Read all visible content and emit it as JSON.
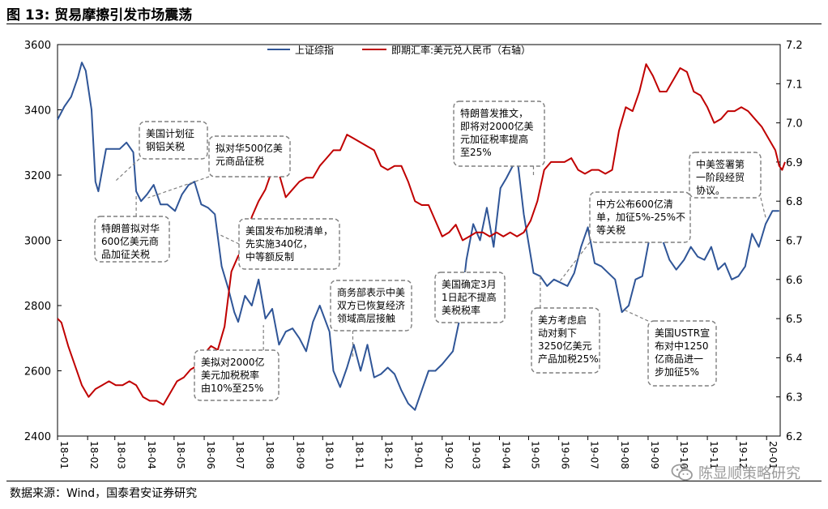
{
  "figure": {
    "title": "图 13: 贸易摩擦引发市场震荡",
    "source": "数据来源：Wind，国泰君安证券研究",
    "watermark": "陈显顺策略研究",
    "watermark_icon": "wechat-icon"
  },
  "colors": {
    "shanghai": "#2f5597",
    "cny": "#c00000",
    "callout_border": "#7f7f7f"
  },
  "chart_data": {
    "type": "line",
    "title": "",
    "legend_placement": "top-center",
    "grid": false,
    "x_ticks": [
      "18-01",
      "18-02",
      "18-03",
      "18-04",
      "18-05",
      "18-06",
      "18-07",
      "18-08",
      "18-09",
      "18-10",
      "18-11",
      "18-12",
      "19-01",
      "19-02",
      "19-03",
      "19-04",
      "19-05",
      "19-06",
      "19-07",
      "19-08",
      "19-09",
      "19-10",
      "19-11",
      "19-12",
      "20-01"
    ],
    "xlim": [
      "2018-01-01",
      "2020-01-15"
    ],
    "y_left": {
      "lim": [
        2400,
        3600
      ],
      "ticks": [
        "2400",
        "2600",
        "2800",
        "3000",
        "3200",
        "3400",
        "3600"
      ]
    },
    "y_right": {
      "lim": [
        6.2,
        7.2
      ],
      "ticks": [
        "6.2",
        "6.3",
        "6.4",
        "6.5",
        "6.6",
        "6.7",
        "6.8",
        "6.9",
        "7.0",
        "7.1",
        "7.2"
      ]
    },
    "series": [
      {
        "name": "上证综指",
        "axis": "left",
        "points": [
          [
            "2018-01-01",
            3370
          ],
          [
            "2018-01-08",
            3410
          ],
          [
            "2018-01-15",
            3440
          ],
          [
            "2018-01-22",
            3500
          ],
          [
            "2018-01-26",
            3545
          ],
          [
            "2018-01-30",
            3520
          ],
          [
            "2018-02-05",
            3400
          ],
          [
            "2018-02-09",
            3180
          ],
          [
            "2018-02-12",
            3150
          ],
          [
            "2018-02-20",
            3280
          ],
          [
            "2018-02-28",
            3280
          ],
          [
            "2018-03-06",
            3280
          ],
          [
            "2018-03-13",
            3300
          ],
          [
            "2018-03-20",
            3270
          ],
          [
            "2018-03-23",
            3150
          ],
          [
            "2018-03-28",
            3120
          ],
          [
            "2018-04-03",
            3140
          ],
          [
            "2018-04-10",
            3170
          ],
          [
            "2018-04-17",
            3110
          ],
          [
            "2018-04-24",
            3110
          ],
          [
            "2018-05-02",
            3090
          ],
          [
            "2018-05-09",
            3140
          ],
          [
            "2018-05-16",
            3170
          ],
          [
            "2018-05-22",
            3180
          ],
          [
            "2018-05-29",
            3110
          ],
          [
            "2018-06-05",
            3100
          ],
          [
            "2018-06-12",
            3080
          ],
          [
            "2018-06-19",
            2920
          ],
          [
            "2018-06-26",
            2850
          ],
          [
            "2018-07-02",
            2780
          ],
          [
            "2018-07-06",
            2750
          ],
          [
            "2018-07-13",
            2830
          ],
          [
            "2018-07-20",
            2800
          ],
          [
            "2018-07-27",
            2880
          ],
          [
            "2018-08-03",
            2760
          ],
          [
            "2018-08-10",
            2790
          ],
          [
            "2018-08-17",
            2680
          ],
          [
            "2018-08-24",
            2720
          ],
          [
            "2018-08-31",
            2730
          ],
          [
            "2018-09-07",
            2700
          ],
          [
            "2018-09-14",
            2660
          ],
          [
            "2018-09-21",
            2750
          ],
          [
            "2018-09-28",
            2800
          ],
          [
            "2018-10-08",
            2720
          ],
          [
            "2018-10-12",
            2600
          ],
          [
            "2018-10-19",
            2550
          ],
          [
            "2018-10-26",
            2610
          ],
          [
            "2018-11-02",
            2680
          ],
          [
            "2018-11-09",
            2600
          ],
          [
            "2018-11-16",
            2680
          ],
          [
            "2018-11-23",
            2580
          ],
          [
            "2018-11-30",
            2590
          ],
          [
            "2018-12-07",
            2610
          ],
          [
            "2018-12-14",
            2590
          ],
          [
            "2018-12-21",
            2540
          ],
          [
            "2018-12-28",
            2500
          ],
          [
            "2019-01-04",
            2480
          ],
          [
            "2019-01-11",
            2540
          ],
          [
            "2019-01-18",
            2600
          ],
          [
            "2019-01-25",
            2600
          ],
          [
            "2019-02-01",
            2620
          ],
          [
            "2019-02-12",
            2660
          ],
          [
            "2019-02-19",
            2760
          ],
          [
            "2019-02-26",
            2940
          ],
          [
            "2019-03-05",
            3050
          ],
          [
            "2019-03-12",
            3000
          ],
          [
            "2019-03-19",
            3100
          ],
          [
            "2019-03-26",
            2980
          ],
          [
            "2019-04-02",
            3160
          ],
          [
            "2019-04-08",
            3190
          ],
          [
            "2019-04-15",
            3230
          ],
          [
            "2019-04-19",
            3260
          ],
          [
            "2019-04-26",
            3080
          ],
          [
            "2019-05-06",
            2900
          ],
          [
            "2019-05-13",
            2890
          ],
          [
            "2019-05-20",
            2860
          ],
          [
            "2019-05-27",
            2880
          ],
          [
            "2019-06-03",
            2870
          ],
          [
            "2019-06-10",
            2860
          ],
          [
            "2019-06-17",
            2900
          ],
          [
            "2019-06-24",
            2980
          ],
          [
            "2019-07-01",
            3040
          ],
          [
            "2019-07-08",
            2930
          ],
          [
            "2019-07-15",
            2920
          ],
          [
            "2019-07-22",
            2900
          ],
          [
            "2019-07-29",
            2880
          ],
          [
            "2019-08-05",
            2780
          ],
          [
            "2019-08-12",
            2800
          ],
          [
            "2019-08-19",
            2880
          ],
          [
            "2019-08-26",
            2890
          ],
          [
            "2019-09-02",
            3000
          ],
          [
            "2019-09-09",
            3030
          ],
          [
            "2019-09-16",
            3000
          ],
          [
            "2019-09-23",
            2940
          ],
          [
            "2019-09-30",
            2910
          ],
          [
            "2019-10-08",
            2940
          ],
          [
            "2019-10-15",
            2980
          ],
          [
            "2019-10-22",
            2950
          ],
          [
            "2019-10-29",
            2940
          ],
          [
            "2019-11-05",
            2980
          ],
          [
            "2019-11-12",
            2910
          ],
          [
            "2019-11-19",
            2930
          ],
          [
            "2019-11-26",
            2880
          ],
          [
            "2019-12-03",
            2890
          ],
          [
            "2019-12-10",
            2920
          ],
          [
            "2019-12-17",
            3020
          ],
          [
            "2019-12-24",
            2980
          ],
          [
            "2019-12-31",
            3050
          ],
          [
            "2020-01-07",
            3090
          ],
          [
            "2020-01-14",
            3090
          ]
        ]
      },
      {
        "name": "即期汇率:美元兑人民币（右轴）",
        "axis": "right",
        "points": [
          [
            "2018-01-01",
            6.5
          ],
          [
            "2018-01-05",
            6.49
          ],
          [
            "2018-01-12",
            6.43
          ],
          [
            "2018-01-19",
            6.38
          ],
          [
            "2018-01-26",
            6.33
          ],
          [
            "2018-02-02",
            6.3
          ],
          [
            "2018-02-09",
            6.32
          ],
          [
            "2018-02-16",
            6.33
          ],
          [
            "2018-02-23",
            6.34
          ],
          [
            "2018-03-02",
            6.33
          ],
          [
            "2018-03-09",
            6.33
          ],
          [
            "2018-03-16",
            6.34
          ],
          [
            "2018-03-23",
            6.33
          ],
          [
            "2018-03-30",
            6.3
          ],
          [
            "2018-04-06",
            6.29
          ],
          [
            "2018-04-13",
            6.29
          ],
          [
            "2018-04-20",
            6.28
          ],
          [
            "2018-04-27",
            6.31
          ],
          [
            "2018-05-04",
            6.34
          ],
          [
            "2018-05-11",
            6.35
          ],
          [
            "2018-05-18",
            6.37
          ],
          [
            "2018-05-25",
            6.38
          ],
          [
            "2018-06-01",
            6.41
          ],
          [
            "2018-06-08",
            6.43
          ],
          [
            "2018-06-15",
            6.42
          ],
          [
            "2018-06-22",
            6.48
          ],
          [
            "2018-06-29",
            6.62
          ],
          [
            "2018-07-06",
            6.66
          ],
          [
            "2018-07-13",
            6.68
          ],
          [
            "2018-07-20",
            6.76
          ],
          [
            "2018-07-27",
            6.8
          ],
          [
            "2018-08-03",
            6.83
          ],
          [
            "2018-08-10",
            6.88
          ],
          [
            "2018-08-17",
            6.87
          ],
          [
            "2018-08-24",
            6.81
          ],
          [
            "2018-08-31",
            6.83
          ],
          [
            "2018-09-07",
            6.85
          ],
          [
            "2018-09-14",
            6.86
          ],
          [
            "2018-09-21",
            6.86
          ],
          [
            "2018-09-28",
            6.89
          ],
          [
            "2018-10-05",
            6.91
          ],
          [
            "2018-10-12",
            6.93
          ],
          [
            "2018-10-19",
            6.93
          ],
          [
            "2018-10-26",
            6.97
          ],
          [
            "2018-11-02",
            6.96
          ],
          [
            "2018-11-09",
            6.95
          ],
          [
            "2018-11-16",
            6.94
          ],
          [
            "2018-11-23",
            6.93
          ],
          [
            "2018-11-30",
            6.89
          ],
          [
            "2018-12-07",
            6.88
          ],
          [
            "2018-12-14",
            6.89
          ],
          [
            "2018-12-21",
            6.89
          ],
          [
            "2018-12-28",
            6.85
          ],
          [
            "2019-01-04",
            6.8
          ],
          [
            "2019-01-11",
            6.79
          ],
          [
            "2019-01-18",
            6.79
          ],
          [
            "2019-01-25",
            6.75
          ],
          [
            "2019-02-01",
            6.71
          ],
          [
            "2019-02-08",
            6.72
          ],
          [
            "2019-02-15",
            6.74
          ],
          [
            "2019-02-22",
            6.7
          ],
          [
            "2019-03-01",
            6.71
          ],
          [
            "2019-03-08",
            6.72
          ],
          [
            "2019-03-15",
            6.72
          ],
          [
            "2019-03-22",
            6.71
          ],
          [
            "2019-03-29",
            6.72
          ],
          [
            "2019-04-05",
            6.71
          ],
          [
            "2019-04-12",
            6.72
          ],
          [
            "2019-04-19",
            6.71
          ],
          [
            "2019-04-26",
            6.72
          ],
          [
            "2019-05-03",
            6.75
          ],
          [
            "2019-05-10",
            6.8
          ],
          [
            "2019-05-17",
            6.88
          ],
          [
            "2019-05-24",
            6.9
          ],
          [
            "2019-05-31",
            6.9
          ],
          [
            "2019-06-07",
            6.9
          ],
          [
            "2019-06-14",
            6.91
          ],
          [
            "2019-06-21",
            6.88
          ],
          [
            "2019-06-28",
            6.87
          ],
          [
            "2019-07-05",
            6.88
          ],
          [
            "2019-07-12",
            6.88
          ],
          [
            "2019-07-19",
            6.87
          ],
          [
            "2019-07-26",
            6.88
          ],
          [
            "2019-08-02",
            6.98
          ],
          [
            "2019-08-09",
            7.04
          ],
          [
            "2019-08-16",
            7.03
          ],
          [
            "2019-08-23",
            7.08
          ],
          [
            "2019-08-30",
            7.15
          ],
          [
            "2019-09-06",
            7.12
          ],
          [
            "2019-09-13",
            7.08
          ],
          [
            "2019-09-20",
            7.08
          ],
          [
            "2019-09-27",
            7.11
          ],
          [
            "2019-10-04",
            7.14
          ],
          [
            "2019-10-11",
            7.13
          ],
          [
            "2019-10-18",
            7.08
          ],
          [
            "2019-10-25",
            7.07
          ],
          [
            "2019-11-01",
            7.04
          ],
          [
            "2019-11-08",
            7.0
          ],
          [
            "2019-11-15",
            7.01
          ],
          [
            "2019-11-22",
            7.03
          ],
          [
            "2019-11-29",
            7.03
          ],
          [
            "2019-12-06",
            7.04
          ],
          [
            "2019-12-13",
            7.03
          ],
          [
            "2019-12-20",
            7.01
          ],
          [
            "2019-12-27",
            6.99
          ],
          [
            "2020-01-03",
            6.96
          ],
          [
            "2020-01-10",
            6.93
          ],
          [
            "2020-01-14",
            6.89
          ],
          [
            "2020-01-17",
            6.88
          ],
          [
            "2020-01-20",
            6.9
          ]
        ]
      }
    ],
    "annotations": [
      {
        "text": [
          "美国计划征",
          "钢铝关税"
        ],
        "date": "2018-03-01",
        "value": 3180
      },
      {
        "text": [
          "拟对华500亿美",
          "元商品征税"
        ],
        "date": "2018-04-04",
        "value": 3130
      },
      {
        "text": [
          "特朗普拟对华",
          "600亿美元商",
          "品加征关税"
        ],
        "date": "2018-03-23",
        "value": 3140
      },
      {
        "text": [
          "美国发布加税清单，",
          "先实施340亿，",
          "中等额反制"
        ],
        "date": "2018-06-15",
        "value": 3020
      },
      {
        "text": [
          "美拟对2000亿",
          "美元加税税率",
          "由10%至25%"
        ],
        "date": "2018-08-01",
        "value": 2740
      },
      {
        "text": [
          "商务部表示中美",
          "双方已恢复经济",
          "领域高层接触"
        ],
        "date": "2018-11-01",
        "value": 2640
      },
      {
        "text": [
          "美国确定3月",
          "1日起不提高",
          "美税税率"
        ],
        "date": "2019-02-25",
        "value": 2910
      },
      {
        "text": [
          "特朗普发推文，",
          "即将对2000亿美",
          "元加征税率提高",
          "至25%"
        ],
        "date": "2019-05-06",
        "value": 3200
      },
      {
        "text": [
          "中方公布600亿清",
          "单，加征5%-25%不",
          "等关税"
        ],
        "date": "2019-06-01",
        "value": 2870
      },
      {
        "text": [
          "美方考虑启",
          "动对剩下",
          "3250亿美元",
          "产品加税25%"
        ],
        "date": "2019-05-13",
        "value": 2890
      },
      {
        "text": [
          "美国USTR宣",
          "布对中1250",
          "亿商品进一",
          "步加征5%"
        ],
        "date": "2019-08-05",
        "value": 2790
      },
      {
        "text": [
          "中美签署第",
          "一阶段经贸",
          "协议。"
        ],
        "date": "2019-12-31",
        "value": 3070
      }
    ]
  }
}
